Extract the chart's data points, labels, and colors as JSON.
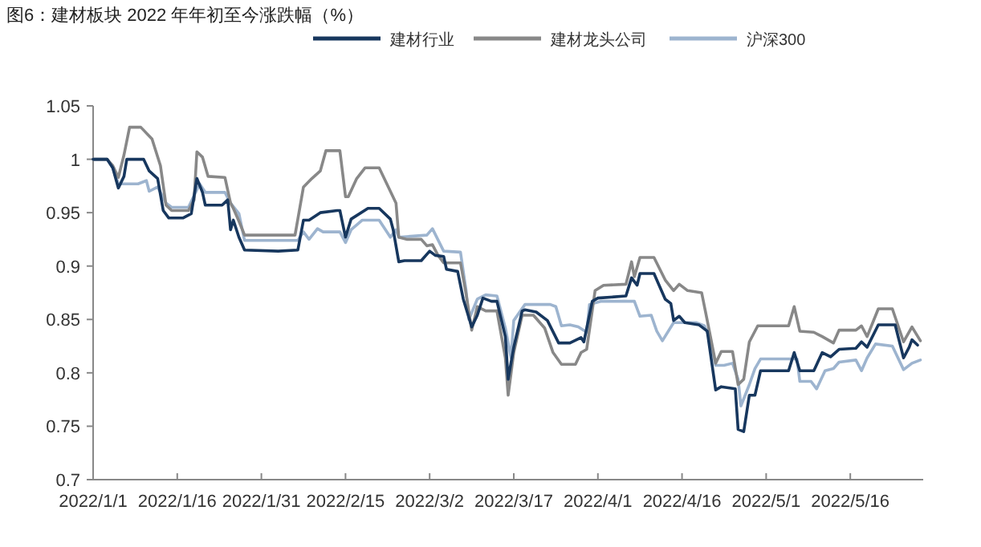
{
  "chart_data": {
    "type": "line",
    "title": "图6：建材板块 2022 年年初至今涨跌幅（%）",
    "legend": "top",
    "grid": false,
    "marker": "none",
    "line_style": "solid",
    "xlim": [
      "2022-01-01",
      "2022-05-29"
    ],
    "xticks": [
      {
        "value": "2022-01-01",
        "label": "2022/1/1"
      },
      {
        "value": "2022-01-16",
        "label": "2022/1/16"
      },
      {
        "value": "2022-01-31",
        "label": "2022/1/31"
      },
      {
        "value": "2022-02-15",
        "label": "2022/2/15"
      },
      {
        "value": "2022-03-02",
        "label": "2022/3/2"
      },
      {
        "value": "2022-03-17",
        "label": "2022/3/17"
      },
      {
        "value": "2022-04-01",
        "label": "2022/4/1"
      },
      {
        "value": "2022-04-16",
        "label": "2022/4/16"
      },
      {
        "value": "2022-05-01",
        "label": "2022/5/1"
      },
      {
        "value": "2022-05-16",
        "label": "2022/5/16"
      }
    ],
    "ylim": [
      0.7,
      1.05
    ],
    "yticks": [
      0.7,
      0.75,
      0.8,
      0.85,
      0.9,
      0.95,
      1,
      1.05
    ],
    "series": [
      {
        "name": "建材行业",
        "color": "#17375e",
        "x": [
          "2022-01-01",
          "2022-01-03T12:00",
          "2022-01-04T12:00",
          "2022-01-05T12:00",
          "2022-01-06T12:00",
          "2022-01-07",
          "2022-01-10",
          "2022-01-11",
          "2022-01-12T12:00",
          "2022-01-13T12:00",
          "2022-01-14T12:00",
          "2022-01-17",
          "2022-01-18T12:00",
          "2022-01-19T12:00",
          "2022-01-20T12:00",
          "2022-01-21",
          "2022-01-24",
          "2022-01-25",
          "2022-01-25T12:00",
          "2022-01-26",
          "2022-01-27",
          "2022-01-28",
          "2022-02-03",
          "2022-02-06T12:00",
          "2022-02-07T12:00",
          "2022-02-08T12:00",
          "2022-02-10T12:00",
          "2022-02-13T12:00",
          "2022-02-14",
          "2022-02-15",
          "2022-02-16",
          "2022-02-19",
          "2022-02-21",
          "2022-02-23",
          "2022-02-23T12:00",
          "2022-02-24T12:00",
          "2022-02-25T12:00",
          "2022-02-28T12:00",
          "2022-03-02",
          "2022-03-03",
          "2022-03-04T12:00",
          "2022-03-05",
          "2022-03-07",
          "2022-03-08",
          "2022-03-09T12:00",
          "2022-03-10T12:00",
          "2022-03-11T12:00",
          "2022-03-13",
          "2022-03-14",
          "2022-03-15T12:00",
          "2022-03-16",
          "2022-03-17",
          "2022-03-18T12:00",
          "2022-03-19",
          "2022-03-21",
          "2022-03-23",
          "2022-03-25",
          "2022-03-27",
          "2022-03-29",
          "2022-03-29T12:00",
          "2022-03-31",
          "2022-04-01",
          "2022-04-06",
          "2022-04-07",
          "2022-04-08",
          "2022-04-08T12:00",
          "2022-04-11",
          "2022-04-13",
          "2022-04-14",
          "2022-04-14T12:00",
          "2022-04-15T12:00",
          "2022-04-16T12:00",
          "2022-04-19",
          "2022-04-20T12:00",
          "2022-04-22",
          "2022-04-23",
          "2022-04-25T12:00",
          "2022-04-26",
          "2022-04-27",
          "2022-04-28",
          "2022-04-29",
          "2022-04-30",
          "2022-05-05",
          "2022-05-06",
          "2022-05-07",
          "2022-05-09T12:00",
          "2022-05-11",
          "2022-05-12T12:00",
          "2022-05-14",
          "2022-05-17",
          "2022-05-18",
          "2022-05-19",
          "2022-05-21",
          "2022-05-24",
          "2022-05-25T12:00",
          "2022-05-26T12:00",
          "2022-05-27",
          "2022-05-28"
        ],
        "values": [
          1.0,
          1.0,
          0.992,
          0.973,
          0.984,
          1.0,
          1.0,
          0.989,
          0.982,
          0.952,
          0.945,
          0.945,
          0.949,
          0.982,
          0.969,
          0.957,
          0.957,
          0.962,
          0.934,
          0.943,
          0.927,
          0.915,
          0.914,
          0.915,
          0.943,
          0.943,
          0.95,
          0.952,
          0.952,
          0.927,
          0.944,
          0.954,
          0.954,
          0.944,
          0.934,
          0.904,
          0.905,
          0.905,
          0.914,
          0.91,
          0.909,
          0.897,
          0.895,
          0.869,
          0.843,
          0.854,
          0.87,
          0.867,
          0.867,
          0.834,
          0.794,
          0.824,
          0.858,
          0.859,
          0.857,
          0.849,
          0.828,
          0.828,
          0.833,
          0.829,
          0.867,
          0.87,
          0.872,
          0.889,
          0.882,
          0.893,
          0.893,
          0.869,
          0.865,
          0.849,
          0.853,
          0.847,
          0.845,
          0.839,
          0.784,
          0.787,
          0.785,
          0.747,
          0.745,
          0.779,
          0.779,
          0.802,
          0.802,
          0.819,
          0.802,
          0.802,
          0.819,
          0.815,
          0.822,
          0.823,
          0.829,
          0.824,
          0.845,
          0.845,
          0.814,
          0.824,
          0.831,
          0.826
        ]
      },
      {
        "name": "建材龙头公司",
        "color": "#888888",
        "x": [
          "2022-01-01",
          "2022-01-03T12:00",
          "2022-01-04T12:00",
          "2022-01-05T12:00",
          "2022-01-06T12:00",
          "2022-01-07T12:00",
          "2022-01-09T12:00",
          "2022-01-11T12:00",
          "2022-01-13",
          "2022-01-14",
          "2022-01-15",
          "2022-01-18",
          "2022-01-19",
          "2022-01-19T12:00",
          "2022-01-20T12:00",
          "2022-01-21T12:00",
          "2022-01-24T12:00",
          "2022-01-25T12:00",
          "2022-01-26",
          "2022-01-27",
          "2022-01-28",
          "2022-02-06",
          "2022-02-07T12:00",
          "2022-02-09",
          "2022-02-10T12:00",
          "2022-02-11T12:00",
          "2022-02-14",
          "2022-02-15",
          "2022-02-15T12:00",
          "2022-02-17",
          "2022-02-18T12:00",
          "2022-02-21",
          "2022-02-23",
          "2022-02-24",
          "2022-02-24T12:00",
          "2022-02-26",
          "2022-02-28T12:00",
          "2022-03-01T12:00",
          "2022-03-02T12:00",
          "2022-03-03T12:00",
          "2022-03-04T12:00",
          "2022-03-07T12:00",
          "2022-03-08T12:00",
          "2022-03-09T12:00",
          "2022-03-10T12:00",
          "2022-03-12",
          "2022-03-14",
          "2022-03-15T12:00",
          "2022-03-16",
          "2022-03-17",
          "2022-03-18T12:00",
          "2022-03-20T12:00",
          "2022-03-22T12:00",
          "2022-03-24",
          "2022-03-25T12:00",
          "2022-03-28",
          "2022-03-29",
          "2022-03-30",
          "2022-03-31T12:00",
          "2022-04-02",
          "2022-04-06",
          "2022-04-07",
          "2022-04-07T12:00",
          "2022-04-08T12:00",
          "2022-04-11",
          "2022-04-13",
          "2022-04-14T12:00",
          "2022-04-15T12:00",
          "2022-04-17",
          "2022-04-19T12:00",
          "2022-04-20T12:00",
          "2022-04-22",
          "2022-04-23",
          "2022-04-25",
          "2022-04-26",
          "2022-04-27",
          "2022-04-28",
          "2022-04-29T12:00",
          "2022-05-05",
          "2022-05-06",
          "2022-05-07",
          "2022-05-09T12:00",
          "2022-05-11",
          "2022-05-13",
          "2022-05-14",
          "2022-05-17",
          "2022-05-18",
          "2022-05-19",
          "2022-05-21",
          "2022-05-23T12:00",
          "2022-05-25T12:00",
          "2022-05-27",
          "2022-05-28T12:00"
        ],
        "values": [
          1.0,
          1.0,
          0.994,
          0.983,
          1.004,
          1.03,
          1.03,
          1.019,
          0.994,
          0.957,
          0.952,
          0.952,
          0.962,
          1.007,
          1.002,
          0.984,
          0.983,
          0.959,
          0.954,
          0.942,
          0.929,
          0.929,
          0.974,
          0.982,
          0.989,
          1.008,
          1.008,
          0.965,
          0.965,
          0.982,
          0.992,
          0.992,
          0.97,
          0.959,
          0.927,
          0.925,
          0.925,
          0.919,
          0.92,
          0.91,
          0.903,
          0.903,
          0.874,
          0.84,
          0.862,
          0.858,
          0.858,
          0.814,
          0.779,
          0.819,
          0.854,
          0.854,
          0.842,
          0.819,
          0.808,
          0.808,
          0.819,
          0.822,
          0.877,
          0.882,
          0.883,
          0.904,
          0.89,
          0.908,
          0.908,
          0.887,
          0.877,
          0.883,
          0.877,
          0.875,
          0.849,
          0.809,
          0.82,
          0.82,
          0.789,
          0.794,
          0.829,
          0.844,
          0.844,
          0.862,
          0.839,
          0.838,
          0.834,
          0.828,
          0.84,
          0.84,
          0.844,
          0.834,
          0.86,
          0.86,
          0.829,
          0.843,
          0.83
        ]
      },
      {
        "name": "沪深300",
        "color": "#9db4cf",
        "x": [
          "2022-01-01",
          "2022-01-03T12:00",
          "2022-01-04T12:00",
          "2022-01-05T12:00",
          "2022-01-09",
          "2022-01-10T12:00",
          "2022-01-11",
          "2022-01-12T12:00",
          "2022-01-14",
          "2022-01-15",
          "2022-01-18",
          "2022-01-20",
          "2022-01-21",
          "2022-01-24T12:00",
          "2022-01-25T12:00",
          "2022-01-27",
          "2022-01-28",
          "2022-02-06T12:00",
          "2022-02-07T12:00",
          "2022-02-08T12:00",
          "2022-02-10",
          "2022-02-11",
          "2022-02-14",
          "2022-02-15",
          "2022-02-16",
          "2022-02-18",
          "2022-02-21",
          "2022-02-23",
          "2022-02-24",
          "2022-02-24T12:00",
          "2022-03-01T12:00",
          "2022-03-02T12:00",
          "2022-03-04T12:00",
          "2022-03-07T12:00",
          "2022-03-08T12:00",
          "2022-03-09",
          "2022-03-10T12:00",
          "2022-03-12",
          "2022-03-14",
          "2022-03-15T12:00",
          "2022-03-16T12:00",
          "2022-03-17",
          "2022-03-19",
          "2022-03-23T12:00",
          "2022-03-24T12:00",
          "2022-03-25T12:00",
          "2022-03-27",
          "2022-03-28T12:00",
          "2022-03-30",
          "2022-03-30T12:00",
          "2022-04-01T12:00",
          "2022-04-07T12:00",
          "2022-04-08T12:00",
          "2022-04-10T12:00",
          "2022-04-11T12:00",
          "2022-04-12T12:00",
          "2022-04-14T12:00",
          "2022-04-18T12:00",
          "2022-04-20",
          "2022-04-21",
          "2022-04-22",
          "2022-04-23T12:00",
          "2022-04-25",
          "2022-04-26",
          "2022-04-26T12:00",
          "2022-04-28",
          "2022-04-29",
          "2022-04-30",
          "2022-05-06T12:00",
          "2022-05-07",
          "2022-05-09",
          "2022-05-10",
          "2022-05-11T12:00",
          "2022-05-13",
          "2022-05-14",
          "2022-05-17",
          "2022-05-18",
          "2022-05-19",
          "2022-05-20T12:00",
          "2022-05-23T12:00",
          "2022-05-25T12:00",
          "2022-05-27",
          "2022-05-28T12:00"
        ],
        "values": [
          1.0,
          1.0,
          0.992,
          0.977,
          0.977,
          0.98,
          0.97,
          0.974,
          0.959,
          0.955,
          0.955,
          0.977,
          0.969,
          0.969,
          0.959,
          0.949,
          0.924,
          0.924,
          0.932,
          0.925,
          0.935,
          0.932,
          0.932,
          0.922,
          0.934,
          0.943,
          0.943,
          0.927,
          0.934,
          0.927,
          0.929,
          0.935,
          0.914,
          0.913,
          0.877,
          0.85,
          0.869,
          0.873,
          0.872,
          0.842,
          0.814,
          0.849,
          0.864,
          0.864,
          0.862,
          0.844,
          0.845,
          0.843,
          0.838,
          0.864,
          0.867,
          0.867,
          0.853,
          0.854,
          0.839,
          0.83,
          0.847,
          0.847,
          0.844,
          0.832,
          0.807,
          0.807,
          0.809,
          0.794,
          0.769,
          0.789,
          0.804,
          0.813,
          0.813,
          0.792,
          0.792,
          0.785,
          0.802,
          0.804,
          0.81,
          0.812,
          0.802,
          0.814,
          0.827,
          0.825,
          0.803,
          0.809,
          0.812
        ]
      }
    ]
  }
}
